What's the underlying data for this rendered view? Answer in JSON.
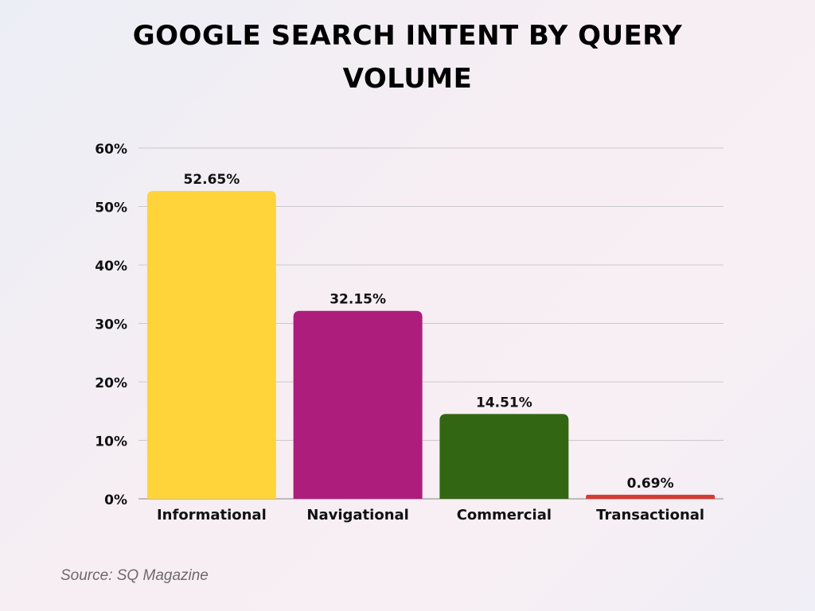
{
  "chart_data": {
    "type": "bar",
    "title": "GOOGLE SEARCH INTENT BY QUERY VOLUME",
    "categories": [
      "Informational",
      "Navigational",
      "Commercial",
      "Transactional"
    ],
    "values": [
      52.65,
      32.15,
      14.51,
      0.69
    ],
    "data_labels": [
      "52.65%",
      "32.15%",
      "14.51%",
      "0.69%"
    ],
    "colors": [
      "#FFD43B",
      "#AD1E7C",
      "#336613",
      "#D63A33"
    ],
    "ylim": [
      0,
      60
    ],
    "yticks": [
      0,
      10,
      20,
      30,
      40,
      50,
      60
    ],
    "ytick_labels": [
      "0%",
      "10%",
      "20%",
      "30%",
      "40%",
      "50%",
      "60%"
    ],
    "xlabel": "",
    "ylabel": "",
    "grid": true,
    "legend": "none"
  },
  "source": "Source: SQ Magazine"
}
